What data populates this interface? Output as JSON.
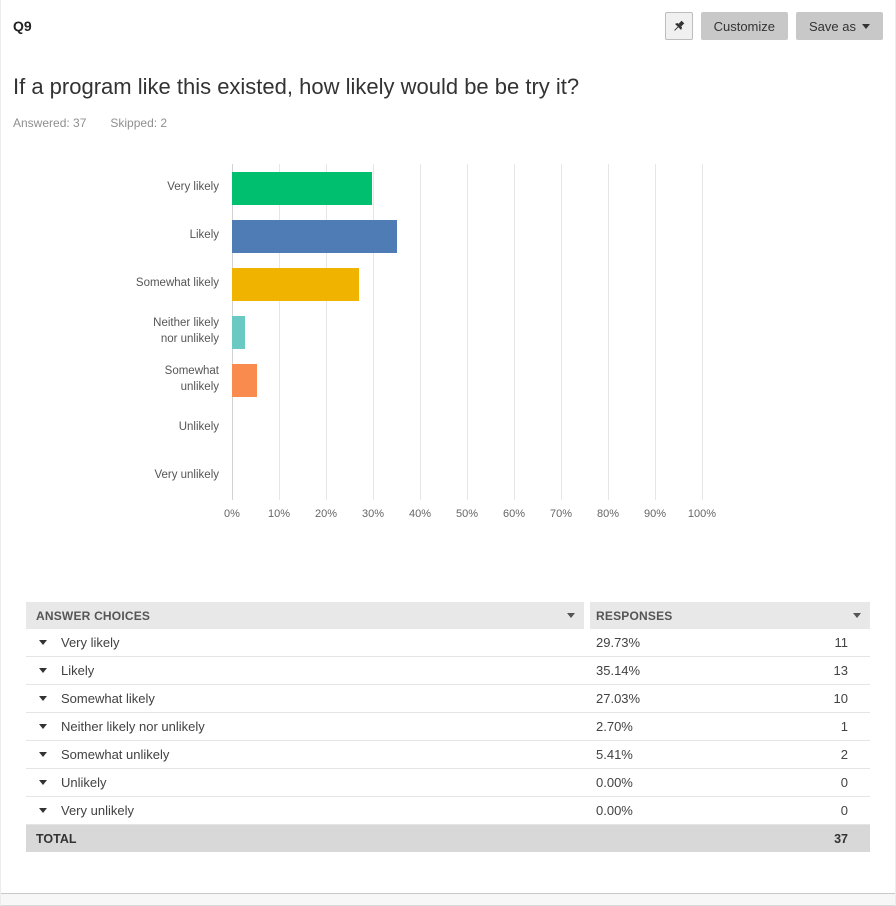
{
  "header": {
    "question_number": "Q9",
    "customize_label": "Customize",
    "save_as_label": "Save as",
    "pin_icon": "pin-icon"
  },
  "question": {
    "title": "If a program like this existed, how likely would be be try it?",
    "answered": "Answered: 37",
    "skipped": "Skipped: 2"
  },
  "chart_data": {
    "type": "bar",
    "orientation": "horizontal",
    "categories": [
      "Very likely",
      "Likely",
      "Somewhat likely",
      "Neither likely\nnor unlikely",
      "Somewhat\nunlikely",
      "Unlikely",
      "Very unlikely"
    ],
    "values": [
      29.73,
      35.14,
      27.03,
      2.7,
      5.41,
      0,
      0
    ],
    "colors": [
      "#00BF6F",
      "#507CB6",
      "#F0B400",
      "#6BC9C4",
      "#FA8B4E",
      "#CCCCCC",
      "#CCCCCC"
    ],
    "xlim": [
      0,
      100
    ],
    "x_tick_labels": [
      "0%",
      "10%",
      "20%",
      "30%",
      "40%",
      "50%",
      "60%",
      "70%",
      "80%",
      "90%",
      "100%"
    ],
    "grid": true,
    "legend": false
  },
  "table": {
    "header": {
      "answer_choices": "ANSWER CHOICES",
      "responses": "RESPONSES"
    },
    "rows": [
      {
        "label": "Very likely",
        "percent": "29.73%",
        "count": "11"
      },
      {
        "label": "Likely",
        "percent": "35.14%",
        "count": "13"
      },
      {
        "label": "Somewhat likely",
        "percent": "27.03%",
        "count": "10"
      },
      {
        "label": "Neither likely nor unlikely",
        "percent": "2.70%",
        "count": "1"
      },
      {
        "label": "Somewhat unlikely",
        "percent": "5.41%",
        "count": "2"
      },
      {
        "label": "Unlikely",
        "percent": "0.00%",
        "count": "0"
      },
      {
        "label": "Very unlikely",
        "percent": "0.00%",
        "count": "0"
      }
    ],
    "total": {
      "label": "TOTAL",
      "count": "37"
    }
  }
}
